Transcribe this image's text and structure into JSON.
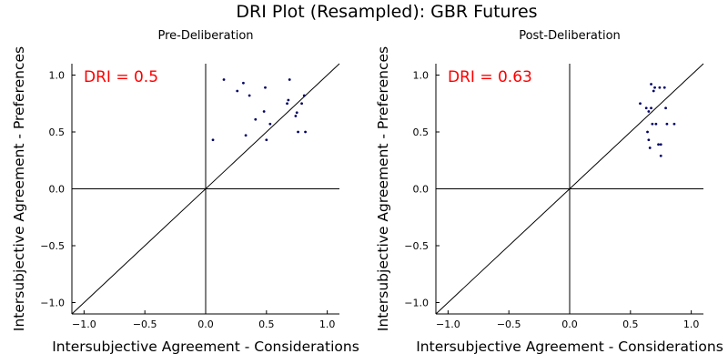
{
  "figure": {
    "title": "DRI Plot (Resampled): GBR Futures",
    "dri_color": "#ff0000",
    "point_color": "#000066"
  },
  "chart_data": [
    {
      "type": "scatter",
      "title": "Pre-Deliberation",
      "annotation": "DRI = 0.5",
      "xlabel": "Intersubjective Agreement - Considerations",
      "ylabel": "Intersubjective Agreement - Preferences",
      "xlim": [
        -1.1,
        1.1
      ],
      "ylim": [
        -1.1,
        1.1
      ],
      "xticks": [
        -1.0,
        -0.5,
        0.0,
        0.5,
        1.0
      ],
      "yticks": [
        -1.0,
        -0.5,
        0.0,
        0.5,
        1.0
      ],
      "xtick_labels": [
        "−1.0",
        "−0.5",
        "0.0",
        "0.5",
        "1.0"
      ],
      "ytick_labels": [
        "−1.0",
        "−0.5",
        "0.0",
        "0.5",
        "1.0"
      ],
      "reference_line": "y = x",
      "grid": false,
      "points": [
        {
          "x": 0.06,
          "y": 0.43
        },
        {
          "x": 0.15,
          "y": 0.96
        },
        {
          "x": 0.26,
          "y": 0.86
        },
        {
          "x": 0.31,
          "y": 0.93
        },
        {
          "x": 0.33,
          "y": 0.47
        },
        {
          "x": 0.36,
          "y": 0.82
        },
        {
          "x": 0.41,
          "y": 0.61
        },
        {
          "x": 0.48,
          "y": 0.68
        },
        {
          "x": 0.49,
          "y": 0.89
        },
        {
          "x": 0.5,
          "y": 0.43
        },
        {
          "x": 0.53,
          "y": 0.57
        },
        {
          "x": 0.67,
          "y": 0.75
        },
        {
          "x": 0.68,
          "y": 0.78
        },
        {
          "x": 0.69,
          "y": 0.96
        },
        {
          "x": 0.74,
          "y": 0.64
        },
        {
          "x": 0.75,
          "y": 0.67
        },
        {
          "x": 0.76,
          "y": 0.5
        },
        {
          "x": 0.79,
          "y": 0.75
        },
        {
          "x": 0.81,
          "y": 0.82
        },
        {
          "x": 0.82,
          "y": 0.5
        }
      ]
    },
    {
      "type": "scatter",
      "title": "Post-Deliberation",
      "annotation": "DRI = 0.63",
      "xlabel": "Intersubjective Agreement - Considerations",
      "ylabel": "Intersubjective Agreement - Preferences",
      "xlim": [
        -1.1,
        1.1
      ],
      "ylim": [
        -1.1,
        1.1
      ],
      "xticks": [
        -1.0,
        -0.5,
        0.0,
        0.5,
        1.0
      ],
      "yticks": [
        -1.0,
        -0.5,
        0.0,
        0.5,
        1.0
      ],
      "xtick_labels": [
        "−1.0",
        "−0.5",
        "0.0",
        "0.5",
        "1.0"
      ],
      "ytick_labels": [
        "−1.0",
        "−0.5",
        "0.0",
        "0.5",
        "1.0"
      ],
      "reference_line": "y = x",
      "grid": false,
      "points": [
        {
          "x": 0.58,
          "y": 0.75
        },
        {
          "x": 0.63,
          "y": 0.71
        },
        {
          "x": 0.64,
          "y": 0.5
        },
        {
          "x": 0.65,
          "y": 0.43
        },
        {
          "x": 0.65,
          "y": 0.68
        },
        {
          "x": 0.66,
          "y": 0.36
        },
        {
          "x": 0.67,
          "y": 0.71
        },
        {
          "x": 0.67,
          "y": 0.92
        },
        {
          "x": 0.68,
          "y": 0.57
        },
        {
          "x": 0.69,
          "y": 0.86
        },
        {
          "x": 0.7,
          "y": 0.89
        },
        {
          "x": 0.71,
          "y": 0.57
        },
        {
          "x": 0.73,
          "y": 0.39
        },
        {
          "x": 0.74,
          "y": 0.89
        },
        {
          "x": 0.75,
          "y": 0.39
        },
        {
          "x": 0.75,
          "y": 0.29
        },
        {
          "x": 0.78,
          "y": 0.89
        },
        {
          "x": 0.79,
          "y": 0.71
        },
        {
          "x": 0.8,
          "y": 0.57
        },
        {
          "x": 0.86,
          "y": 0.57
        }
      ]
    }
  ]
}
